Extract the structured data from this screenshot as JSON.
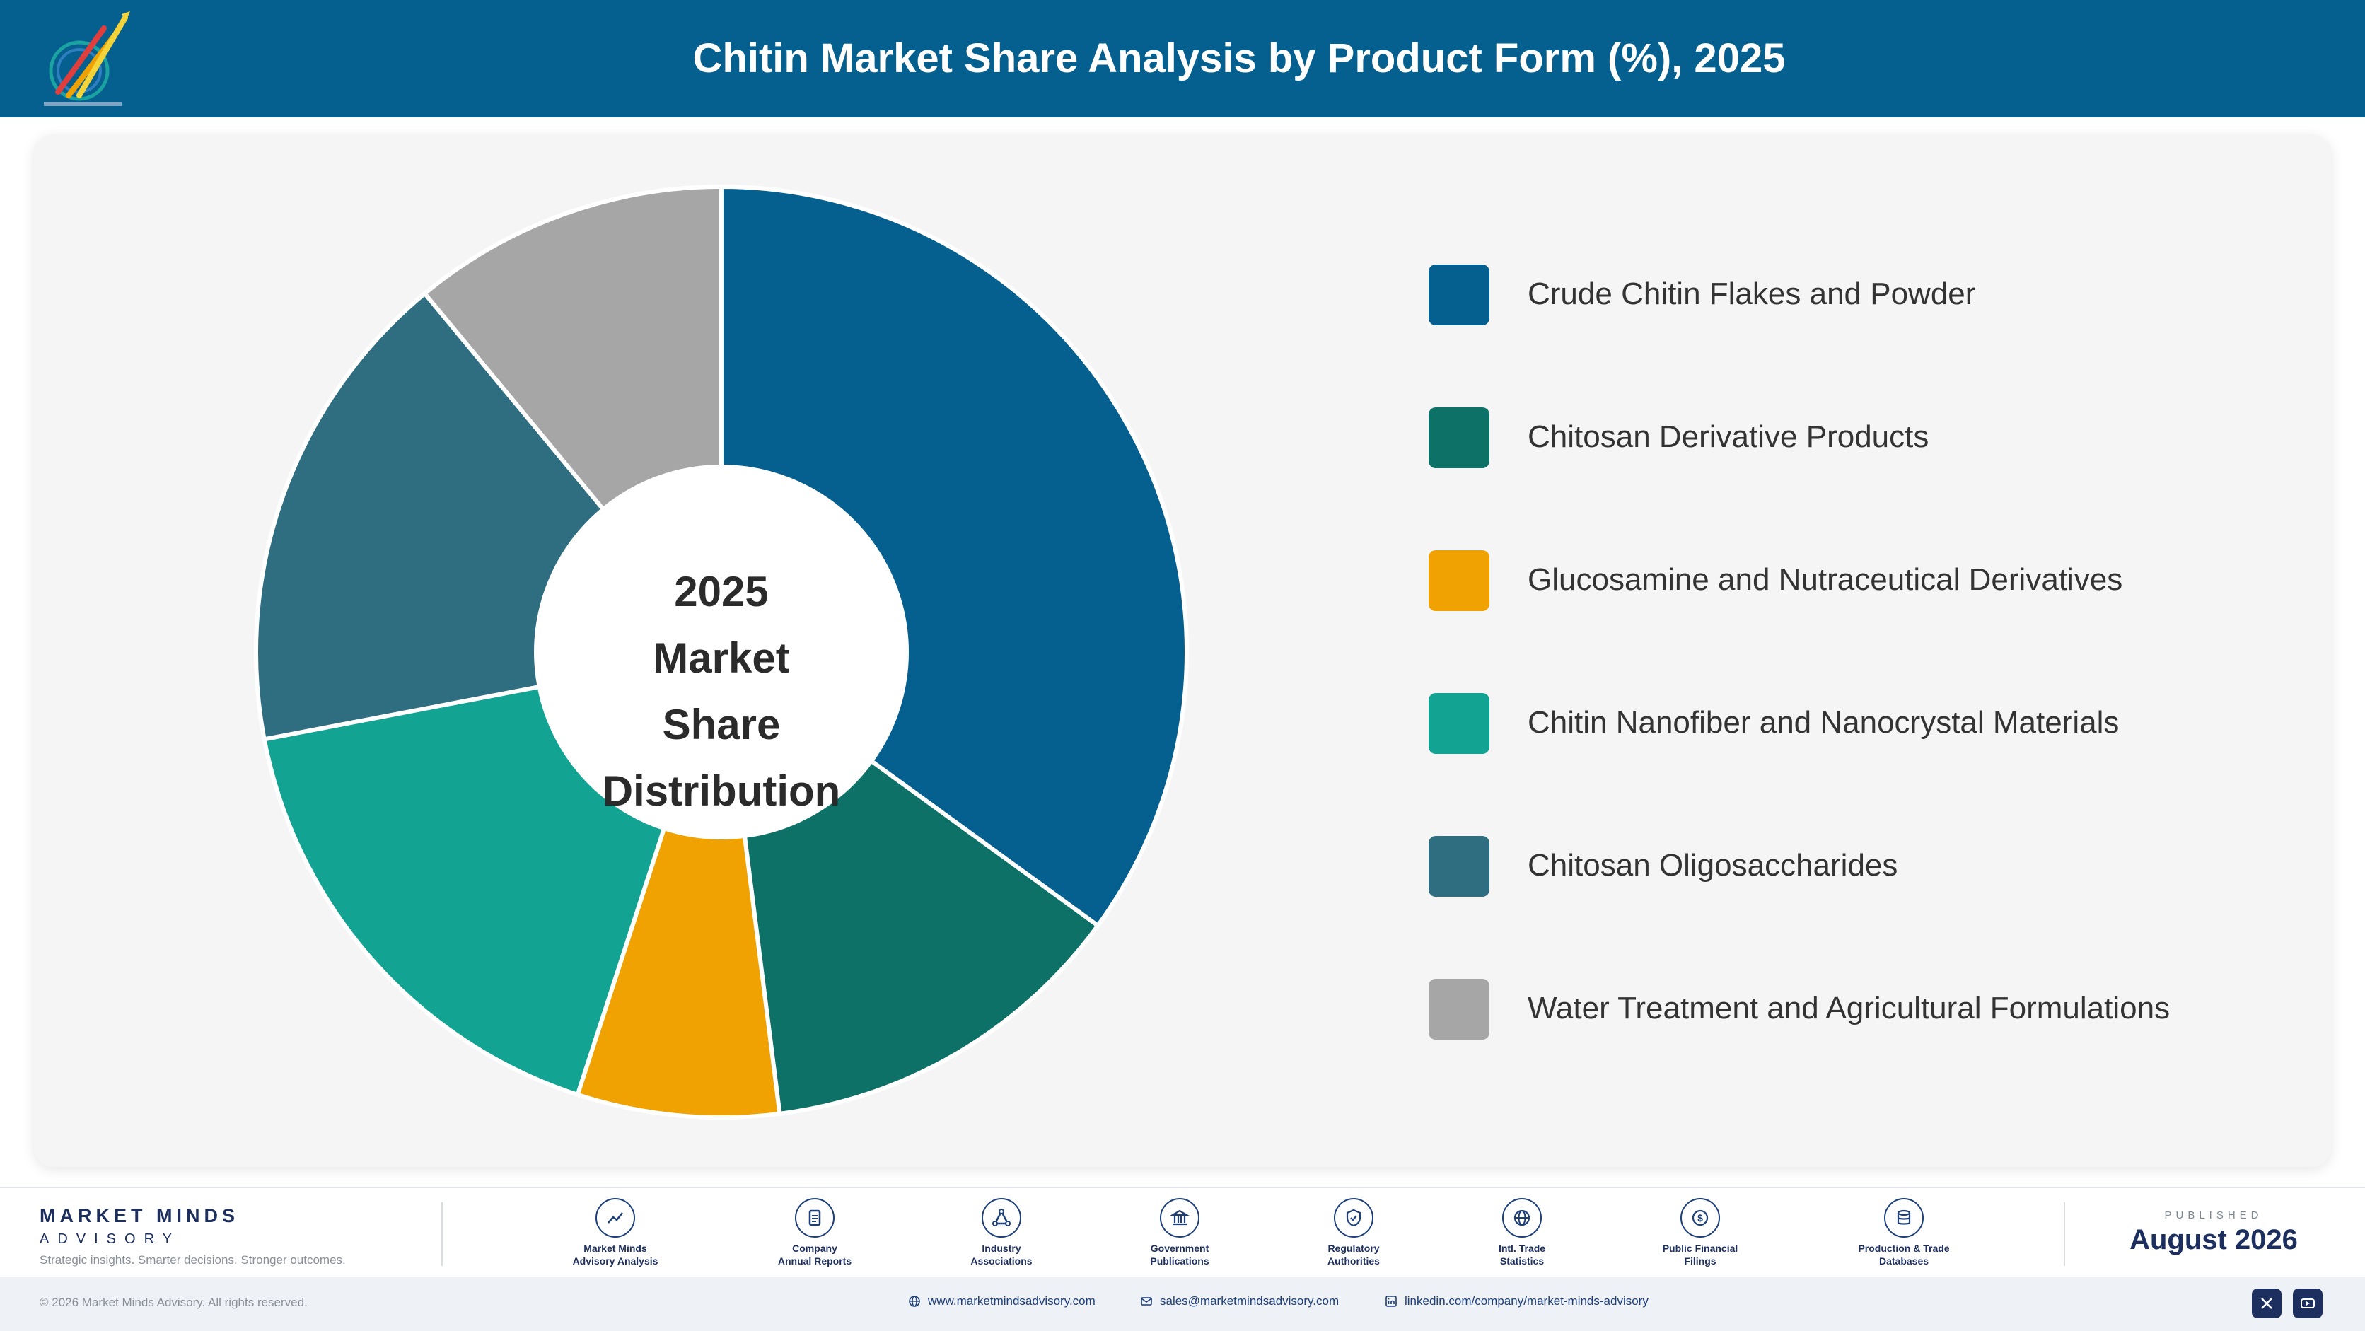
{
  "header": {
    "title": "Chitin Market Share Analysis by Product Form (%), 2025"
  },
  "chart_data": {
    "type": "pie",
    "title": "Chitin Market Share Analysis by Product Form (%), 2025",
    "center_label": [
      "2025",
      "Market Share",
      "Distribution"
    ],
    "categories": [
      "Crude Chitin Flakes and Powder",
      "Chitosan Derivative Products",
      "Glucosamine and Nutraceutical Derivatives",
      "Chitin Nanofiber and Nanocrystal Materials",
      "Chitosan Oligosaccharides",
      "Water Treatment and Agricultural Formulations"
    ],
    "values": [
      35,
      13,
      7,
      17,
      17,
      11
    ],
    "colors": [
      "#06608f",
      "#0d7168",
      "#f0a202",
      "#12a393",
      "#2f6d80",
      "#a6a6a6"
    ],
    "legend_position": "right"
  },
  "footer": {
    "brand_name": "MARKET MINDS",
    "brand_sub": "ADVISORY",
    "tagline": "Strategic insights. Smarter decisions. Stronger outcomes.",
    "sources": [
      {
        "line1": "Market Minds",
        "line2": "Advisory Analysis",
        "icon": "trend-icon"
      },
      {
        "line1": "Company",
        "line2": "Annual Reports",
        "icon": "document-icon"
      },
      {
        "line1": "Industry",
        "line2": "Associations",
        "icon": "network-icon"
      },
      {
        "line1": "Government",
        "line2": "Publications",
        "icon": "building-icon"
      },
      {
        "line1": "Regulatory",
        "line2": "Authorities",
        "icon": "shield-icon"
      },
      {
        "line1": "Intl. Trade",
        "line2": "Statistics",
        "icon": "globe-icon"
      },
      {
        "line1": "Public Financial",
        "line2": "Filings",
        "icon": "dollar-icon"
      },
      {
        "line1": "Production & Trade",
        "line2": "Databases",
        "icon": "database-icon"
      }
    ],
    "published_label": "PUBLISHED",
    "published_date": "August 2026",
    "copyright": "© 2026 Market Minds Advisory. All rights reserved.",
    "website": "www.marketmindsadvisory.com",
    "email": "sales@marketmindsadvisory.com",
    "linkedin": "linkedin.com/company/market-minds-advisory"
  }
}
